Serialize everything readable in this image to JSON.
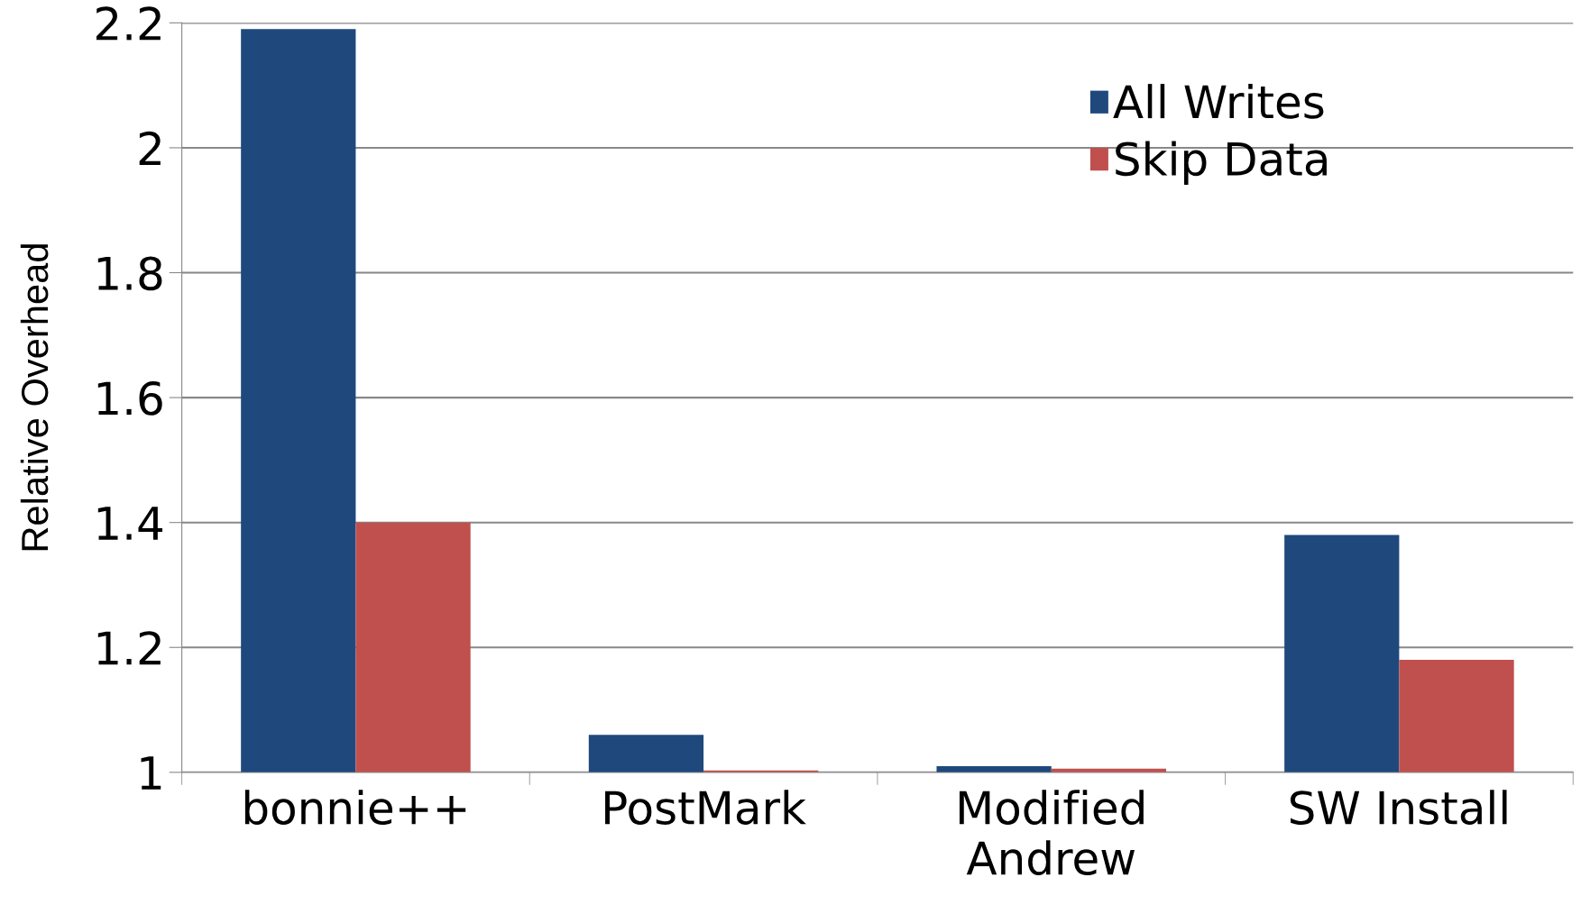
{
  "chart_data": {
    "type": "bar",
    "ylabel": "Relative Overhead",
    "categories": [
      "bonnie++",
      "PostMark",
      "Modified\nAndrew",
      "SW Install"
    ],
    "series": [
      {
        "name": "All Writes",
        "color": "#1f497d",
        "values": [
          2.19,
          1.06,
          1.01,
          1.38
        ]
      },
      {
        "name": "Skip Data",
        "color": "#c0504d",
        "values": [
          1.4,
          1.003,
          1.006,
          1.18
        ]
      }
    ],
    "ylim": [
      1,
      2.2
    ],
    "yticks": [
      1,
      1.2,
      1.4,
      1.6,
      1.8,
      2,
      2.2
    ],
    "grid": "y",
    "legend": "top right"
  }
}
